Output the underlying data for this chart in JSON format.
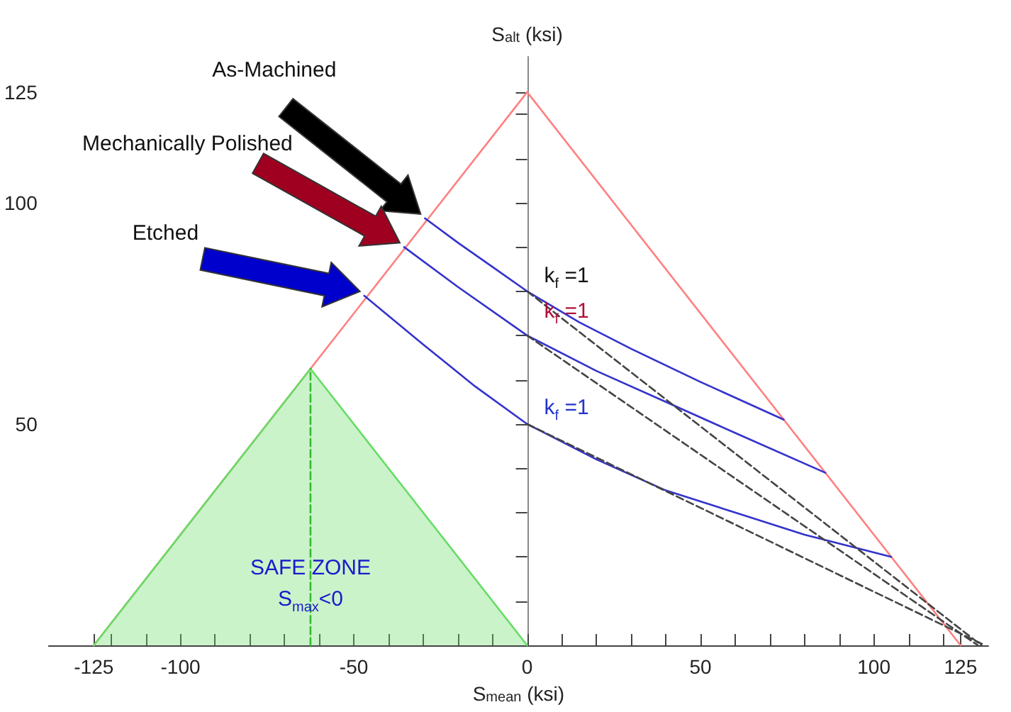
{
  "chart_data": {
    "type": "line",
    "xlabel": "S$_{mean}$ (ksi)",
    "ylabel": "S$_{alt}$ (ksi)",
    "xlim": [
      -138,
      133
    ],
    "ylim": [
      0,
      133
    ],
    "xticks": [
      -125,
      {
        "value": -120,
        "label": null
      },
      {
        "value": -110,
        "label": null
      },
      -100,
      {
        "value": -90,
        "label": null
      },
      {
        "value": -80,
        "label": null
      },
      {
        "value": -70,
        "label": null
      },
      {
        "value": -60,
        "label": null
      },
      -50,
      {
        "value": -40,
        "label": null
      },
      {
        "value": -30,
        "label": null
      },
      {
        "value": -20,
        "label": null
      },
      {
        "value": -10,
        "label": null
      },
      0,
      {
        "value": 10,
        "label": null
      },
      {
        "value": 20,
        "label": null
      },
      {
        "value": 30,
        "label": null
      },
      {
        "value": 40,
        "label": null
      },
      50,
      {
        "value": 60,
        "label": null
      },
      {
        "value": 70,
        "label": null
      },
      {
        "value": 80,
        "label": null
      },
      {
        "value": 90,
        "label": null
      },
      100,
      {
        "value": 110,
        "label": null
      },
      {
        "value": 120,
        "label": null
      },
      125
    ],
    "yticks": [
      {
        "value": 10,
        "label": null
      },
      {
        "value": 20,
        "label": null
      },
      {
        "value": 30,
        "label": null
      },
      {
        "value": 40,
        "label": null
      },
      50,
      {
        "value": 60,
        "label": null
      },
      {
        "value": 70,
        "label": null
      },
      {
        "value": 80,
        "label": null
      },
      {
        "value": 90,
        "label": null
      },
      100,
      {
        "value": 110,
        "label": null
      },
      {
        "value": 120,
        "label": null
      },
      125
    ],
    "marker": "none",
    "series": [
      {
        "color": "#ff8080",
        "x": [
          -125,
          0,
          125
        ],
        "values": [
          0,
          125,
          0
        ]
      },
      {
        "color": "#3333cc",
        "x": [
          -29.5,
          -20,
          -10,
          0,
          15,
          30,
          50,
          74
        ],
        "values": [
          96.5,
          91,
          85.5,
          80,
          73,
          67,
          59.5,
          51
        ]
      },
      {
        "color": "#3333cc",
        "x": [
          -35.5,
          -20,
          0,
          20,
          40,
          60,
          86
        ],
        "values": [
          90,
          81,
          70,
          62,
          55,
          48,
          39
        ]
      },
      {
        "color": "#3333cc",
        "x": [
          -47,
          -30,
          -15,
          0,
          20,
          40,
          60,
          80,
          105
        ],
        "values": [
          79,
          68,
          58.5,
          50,
          42,
          35,
          30,
          25,
          20
        ]
      },
      {
        "color": "#444444",
        "line_style": "dashed",
        "x": [
          0,
          131
        ],
        "values": [
          80,
          0
        ]
      },
      {
        "color": "#444444",
        "line_style": "dashed",
        "x": [
          0,
          130
        ],
        "values": [
          70,
          0
        ]
      },
      {
        "color": "#444444",
        "line_style": "dashed",
        "x": [
          0,
          132
        ],
        "values": [
          50,
          0
        ]
      },
      {
        "type": "area",
        "color": "#66dd66",
        "x": [
          -125,
          -62.5,
          0
        ],
        "values": [
          0,
          62.5,
          0
        ]
      },
      {
        "color": "#33bb33",
        "line_style": "dashed",
        "x": [
          -62.5,
          -62.5
        ],
        "values": [
          0,
          62.5
        ]
      }
    ],
    "annotations": [
      "As-Machined",
      "Mechanically Polished",
      "Etched",
      "k$_{f}$ =1",
      "k$_{f}$ =1",
      "k$_{f}$ =1",
      "SAFE ZONE",
      "S$_{max}$<0"
    ]
  }
}
